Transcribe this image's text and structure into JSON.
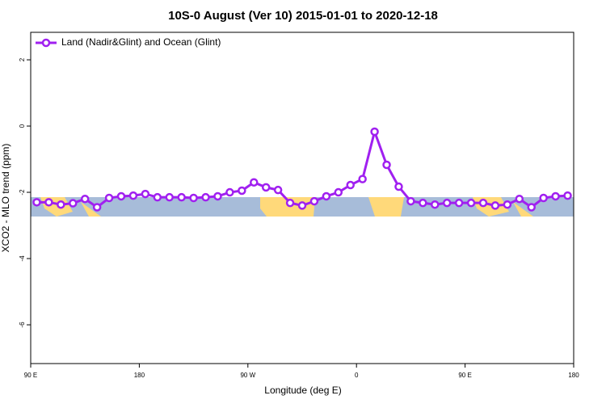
{
  "chart_data": {
    "type": "line",
    "title": "10S-0 August (Ver 10)   2015-01-01 to 2020-12-18",
    "x_label": "Longitude (deg E)",
    "y_label": "XCO2 - MLO trend (ppm)",
    "x": [
      95,
      105,
      115,
      125,
      135,
      145,
      155,
      165,
      175,
      185,
      195,
      205,
      215,
      225,
      235,
      245,
      255,
      265,
      275,
      285,
      295,
      305,
      315,
      325,
      335,
      345,
      355,
      365,
      375,
      385,
      395,
      405,
      415,
      425,
      435,
      445,
      455,
      465,
      475,
      485,
      495,
      505,
      515,
      525,
      535
    ],
    "series": [
      {
        "name": "Land (Nadir&Glint) and Ocean (Glint)",
        "color": "#a020f0",
        "values": [
          -2.3,
          -2.3,
          -2.37,
          -2.33,
          -2.2,
          -2.45,
          -2.17,
          -2.12,
          -2.1,
          -2.05,
          -2.15,
          -2.15,
          -2.15,
          -2.17,
          -2.15,
          -2.12,
          -2.0,
          -1.95,
          -1.7,
          -1.85,
          -1.93,
          -2.32,
          -2.4,
          -2.27,
          -2.12,
          -2.0,
          -1.78,
          -1.6,
          -0.17,
          -1.17,
          -1.83,
          -2.27,
          -2.32,
          -2.37,
          -2.32,
          -2.32,
          -2.32,
          -2.32,
          -2.4,
          -2.37,
          -2.2,
          -2.45,
          -2.17,
          -2.12,
          -2.1
        ]
      }
    ],
    "xlim": [
      90,
      540
    ],
    "xticks": [
      {
        "value": 90,
        "label": "90 E"
      },
      180,
      {
        "value": 270,
        "label": "90 W"
      },
      {
        "value": 360,
        "label": "0"
      },
      {
        "value": 450,
        "label": "90 E"
      },
      {
        "value": 540,
        "label": "180"
      }
    ],
    "ylim": [
      -7.17,
      2.83
    ],
    "yticks": [
      -6,
      -4,
      -2,
      0,
      2
    ],
    "legend": "top-left"
  }
}
